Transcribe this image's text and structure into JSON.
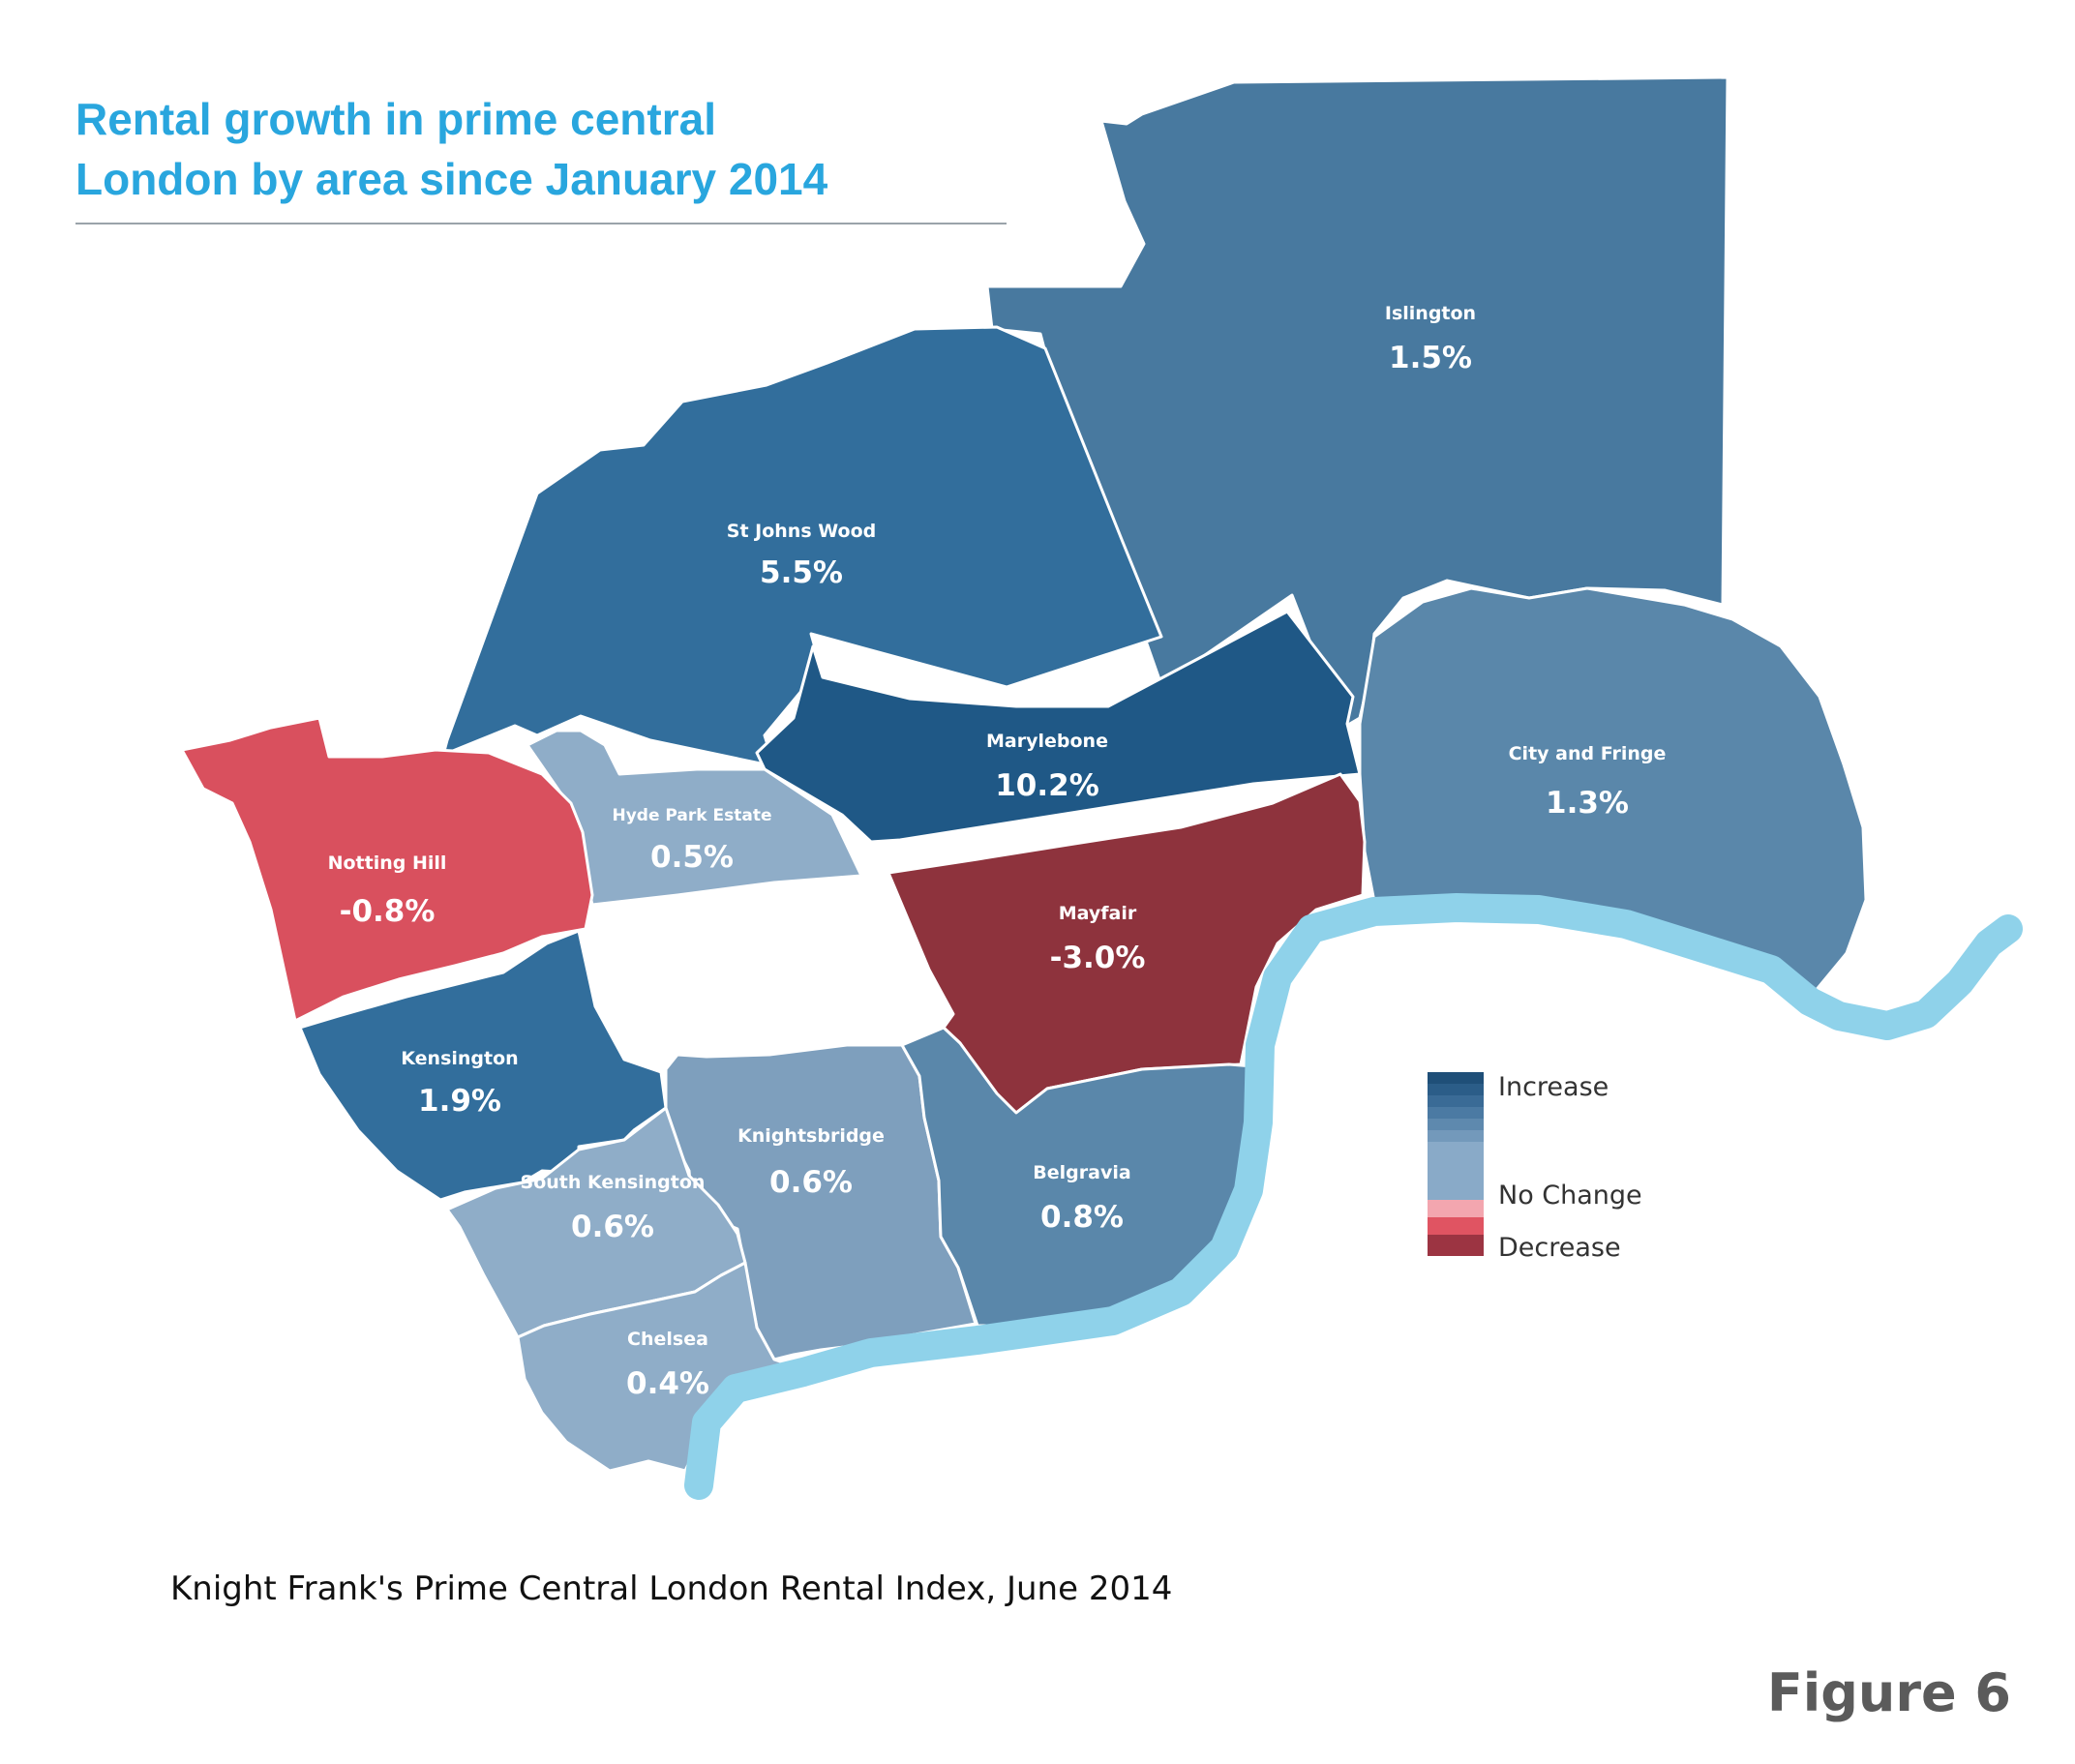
{
  "title_lines": [
    "Rental growth in prime central",
    "London by area since January 2014"
  ],
  "caption": "Knight Frank's Prime Central London Rental Index, June 2014",
  "figure_label": "Figure 6",
  "colors": {
    "increase_strong": "#1f5886",
    "increase": "#326e9c",
    "increase_mild": "#48799f",
    "increase_light": "#5a87aa",
    "slight_increase": "#7e9fbd",
    "near_zero": "#8fadc8",
    "decrease": "#d9505e",
    "decrease_strong": "#8e333d",
    "river": "#8fd2ea"
  },
  "areas": [
    {
      "name": "Islington",
      "value": "1.5%"
    },
    {
      "name": "St Johns Wood",
      "value": "5.5%"
    },
    {
      "name": "Marylebone",
      "value": "10.2%"
    },
    {
      "name": "City and Fringe",
      "value": "1.3%"
    },
    {
      "name": "Hyde Park Estate",
      "value": "0.5%"
    },
    {
      "name": "Notting Hill",
      "value": "-0.8%"
    },
    {
      "name": "Mayfair",
      "value": "-3.0%"
    },
    {
      "name": "Kensington",
      "value": "1.9%"
    },
    {
      "name": "Knightsbridge",
      "value": "0.6%"
    },
    {
      "name": "South Kensington",
      "value": "0.6%"
    },
    {
      "name": "Belgravia",
      "value": "0.8%"
    },
    {
      "name": "Chelsea",
      "value": "0.4%"
    }
  ],
  "legend": {
    "increase": "Increase",
    "no_change": "No Change",
    "decrease": "Decrease",
    "swatches": [
      "#1f4f78",
      "#2b5d88",
      "#3a6b96",
      "#4b7aa3",
      "#5e89ae",
      "#7399bb",
      "#89aac8",
      "#f3a6af",
      "#e05462",
      "#9c3442"
    ]
  }
}
